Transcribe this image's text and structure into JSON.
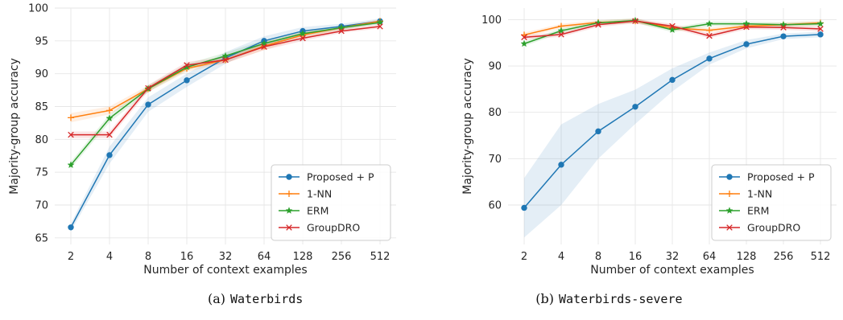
{
  "colors": {
    "proposed": "#1f77b4",
    "one_nn": "#ff7f0e",
    "erm": "#2ca02c",
    "groupdro": "#d62728",
    "grid": "#e6e6e6",
    "axis_bg": "#ffffff",
    "spine": "#cccccc"
  },
  "chart_data": [
    {
      "type": "line",
      "panel": "a",
      "caption_prefix": "(a)",
      "caption_name": "Waterbirds",
      "xlabel": "Number of context examples",
      "ylabel": "Majority-group accuracy",
      "x_scale": "log2",
      "x": [
        2,
        4,
        8,
        16,
        32,
        64,
        128,
        256,
        512
      ],
      "xticks": [
        "2",
        "4",
        "8",
        "16",
        "32",
        "64",
        "128",
        "256",
        "512"
      ],
      "ylim": [
        64,
        100
      ],
      "yticks": [
        65,
        70,
        75,
        80,
        85,
        90,
        95,
        100
      ],
      "grid": true,
      "legend_position": "lower-right",
      "series": [
        {
          "name": "Proposed + P",
          "color_key": "proposed",
          "marker": "circle",
          "values": [
            66.6,
            77.6,
            85.3,
            89.0,
            92.4,
            95.0,
            96.5,
            97.2,
            98.0
          ],
          "band_low": [
            66.0,
            76.3,
            84.2,
            88.0,
            91.5,
            94.3,
            95.9,
            96.8,
            97.6
          ],
          "band_high": [
            67.2,
            78.9,
            86.4,
            90.0,
            93.3,
            95.7,
            97.1,
            97.6,
            98.4
          ]
        },
        {
          "name": "1-NN",
          "color_key": "one_nn",
          "marker": "plus",
          "values": [
            83.3,
            84.4,
            87.7,
            90.8,
            92.1,
            94.2,
            95.9,
            97.0,
            98.0
          ],
          "band_low": [
            82.6,
            83.8,
            87.2,
            90.3,
            91.6,
            93.6,
            95.4,
            96.7,
            97.7
          ],
          "band_high": [
            84.0,
            85.0,
            88.2,
            91.3,
            92.6,
            94.8,
            96.4,
            97.3,
            98.3
          ]
        },
        {
          "name": "ERM",
          "color_key": "erm",
          "marker": "star",
          "values": [
            76.1,
            83.2,
            87.7,
            91.0,
            92.7,
            94.6,
            96.1,
            97.0,
            97.8
          ],
          "band_low": [
            75.6,
            82.6,
            87.2,
            90.5,
            92.2,
            94.1,
            95.7,
            96.7,
            97.5
          ],
          "band_high": [
            76.6,
            83.8,
            88.2,
            91.5,
            93.2,
            95.1,
            96.5,
            97.3,
            98.1
          ]
        },
        {
          "name": "GroupDRO",
          "color_key": "groupdro",
          "marker": "x",
          "values": [
            80.7,
            80.7,
            87.8,
            91.3,
            92.1,
            94.1,
            95.4,
            96.5,
            97.2
          ],
          "band_low": [
            80.2,
            80.2,
            87.3,
            90.8,
            91.6,
            93.6,
            95.0,
            96.2,
            96.9
          ],
          "band_high": [
            81.2,
            81.2,
            88.3,
            91.8,
            92.6,
            94.6,
            95.8,
            96.8,
            97.5
          ]
        }
      ]
    },
    {
      "type": "line",
      "panel": "b",
      "caption_prefix": "(b)",
      "caption_name": "Waterbirds-severe",
      "xlabel": "Number of context examples",
      "ylabel": "Majority-group accuracy",
      "x_scale": "log2",
      "x": [
        2,
        4,
        8,
        16,
        32,
        64,
        128,
        256,
        512
      ],
      "xticks": [
        "2",
        "4",
        "8",
        "16",
        "32",
        "64",
        "128",
        "256",
        "512"
      ],
      "ylim": [
        51.5,
        102.5
      ],
      "yticks": [
        60,
        70,
        80,
        90,
        100
      ],
      "grid": true,
      "legend_position": "lower-right",
      "series": [
        {
          "name": "Proposed + P",
          "color_key": "proposed",
          "marker": "circle",
          "values": [
            59.4,
            68.7,
            75.9,
            81.2,
            87.0,
            91.6,
            94.7,
            96.4,
            96.8
          ],
          "band_low": [
            53.0,
            60.0,
            70.0,
            77.5,
            84.5,
            90.3,
            93.8,
            95.8,
            96.2
          ],
          "band_high": [
            65.8,
            77.4,
            81.8,
            84.9,
            89.5,
            92.9,
            95.6,
            97.0,
            97.4
          ]
        },
        {
          "name": "1-NN",
          "color_key": "one_nn",
          "marker": "plus",
          "values": [
            96.7,
            98.6,
            99.4,
            99.7,
            98.2,
            97.7,
            98.6,
            98.9,
            99.3
          ],
          "band_low": [
            96.2,
            98.1,
            98.9,
            99.2,
            97.7,
            97.2,
            98.1,
            98.4,
            98.8
          ],
          "band_high": [
            97.2,
            99.1,
            99.9,
            100.2,
            98.7,
            98.2,
            99.1,
            99.4,
            99.8
          ]
        },
        {
          "name": "ERM",
          "color_key": "erm",
          "marker": "star",
          "values": [
            94.8,
            97.6,
            99.3,
            99.8,
            97.8,
            99.1,
            99.1,
            98.9,
            99.1
          ],
          "band_low": [
            94.3,
            97.1,
            98.8,
            99.3,
            97.3,
            98.6,
            98.6,
            98.4,
            98.6
          ],
          "band_high": [
            95.3,
            98.1,
            99.8,
            100.3,
            98.3,
            99.6,
            99.6,
            99.4,
            99.6
          ]
        },
        {
          "name": "GroupDRO",
          "color_key": "groupdro",
          "marker": "x",
          "values": [
            96.2,
            96.8,
            98.9,
            99.7,
            98.6,
            96.5,
            98.4,
            98.3,
            98.0
          ],
          "band_low": [
            95.7,
            96.3,
            98.4,
            99.2,
            98.1,
            96.0,
            97.9,
            97.8,
            97.5
          ],
          "band_high": [
            96.7,
            97.3,
            99.4,
            100.2,
            99.1,
            97.0,
            98.9,
            98.8,
            98.5
          ]
        }
      ]
    }
  ]
}
